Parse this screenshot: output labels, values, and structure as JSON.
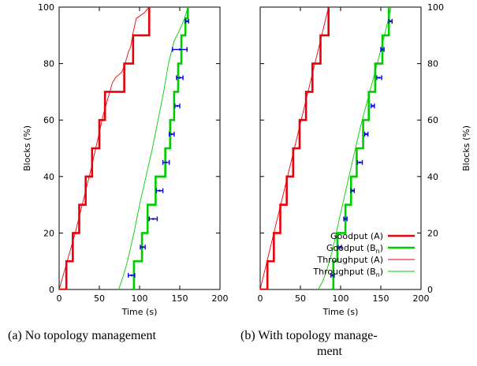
{
  "captions": {
    "a": "(a) No topology management",
    "b_line1": "(b)  With  topology  manage-",
    "b_line2": "ment"
  },
  "chart_data": [
    {
      "type": "line",
      "title": "",
      "xlabel": "Time (s)",
      "ylabel": "Blocks (%)",
      "xlim": [
        0,
        200
      ],
      "ylim": [
        0,
        100
      ],
      "xticks": [
        "0",
        "50",
        "100",
        "150",
        "200"
      ],
      "yticks": [
        "0",
        "20",
        "40",
        "60",
        "80",
        "100"
      ],
      "ylabel_side": "left",
      "legend": "none",
      "series": [
        {
          "name": "Goodput (A)",
          "style": "step",
          "color": "#e8000b",
          "points": [
            [
              0,
              0
            ],
            [
              9,
              0
            ],
            [
              9,
              10
            ],
            [
              17,
              10
            ],
            [
              17,
              20
            ],
            [
              25,
              20
            ],
            [
              25,
              30
            ],
            [
              33,
              30
            ],
            [
              33,
              40
            ],
            [
              41,
              40
            ],
            [
              41,
              50
            ],
            [
              50,
              50
            ],
            [
              50,
              60
            ],
            [
              57,
              60
            ],
            [
              57,
              70
            ],
            [
              81,
              70
            ],
            [
              81,
              80
            ],
            [
              92,
              80
            ],
            [
              92,
              90
            ],
            [
              112,
              90
            ],
            [
              112,
              100
            ]
          ]
        },
        {
          "name": "Throughput (A)",
          "style": "line",
          "color": "#e8000b",
          "points": [
            [
              0,
              0
            ],
            [
              20,
              20
            ],
            [
              40,
              43
            ],
            [
              55,
              62
            ],
            [
              66,
              73
            ],
            [
              70,
              75
            ],
            [
              74,
              76
            ],
            [
              78,
              77
            ],
            [
              82,
              80
            ],
            [
              86,
              84
            ],
            [
              89,
              86
            ],
            [
              92,
              91
            ],
            [
              96,
              96
            ],
            [
              106,
              98
            ],
            [
              112,
              100
            ]
          ]
        },
        {
          "name": "Goodput (B_n)",
          "style": "step",
          "color": "#00cc00",
          "points": [
            [
              90,
              0
            ],
            [
              93,
              0
            ],
            [
              93,
              10
            ],
            [
              103,
              10
            ],
            [
              103,
              20
            ],
            [
              110,
              20
            ],
            [
              110,
              30
            ],
            [
              120,
              30
            ],
            [
              120,
              40
            ],
            [
              132,
              40
            ],
            [
              132,
              50
            ],
            [
              138,
              50
            ],
            [
              138,
              60
            ],
            [
              143,
              60
            ],
            [
              143,
              70
            ],
            [
              148,
              70
            ],
            [
              148,
              80
            ],
            [
              152,
              80
            ],
            [
              152,
              90
            ],
            [
              157,
              90
            ],
            [
              157,
              96
            ],
            [
              160,
              96
            ],
            [
              160,
              100
            ]
          ]
        },
        {
          "name": "Throughput (B_n)",
          "style": "line",
          "color": "#00cc00",
          "points": [
            [
              74,
              0
            ],
            [
              80,
              5
            ],
            [
              85,
              10
            ],
            [
              93,
              20
            ],
            [
              100,
              30
            ],
            [
              108,
              40
            ],
            [
              116,
              50
            ],
            [
              123,
              60
            ],
            [
              130,
              70
            ],
            [
              136,
              80
            ],
            [
              143,
              88
            ],
            [
              150,
              92
            ],
            [
              156,
              96
            ],
            [
              160,
              100
            ]
          ]
        }
      ],
      "errorbars": {
        "color": "#0000e0",
        "points": [
          {
            "y": 5,
            "x": 90,
            "xmin": 86,
            "xmax": 94
          },
          {
            "y": 15,
            "x": 104,
            "xmin": 101,
            "xmax": 107
          },
          {
            "y": 25,
            "x": 117,
            "xmin": 112,
            "xmax": 122
          },
          {
            "y": 35,
            "x": 125,
            "xmin": 121,
            "xmax": 129
          },
          {
            "y": 45,
            "x": 133,
            "xmin": 129,
            "xmax": 137
          },
          {
            "y": 55,
            "x": 140,
            "xmin": 137,
            "xmax": 143
          },
          {
            "y": 65,
            "x": 147,
            "xmin": 144,
            "xmax": 150
          },
          {
            "y": 75,
            "x": 150,
            "xmin": 146,
            "xmax": 154
          },
          {
            "y": 85,
            "x": 150,
            "xmin": 141,
            "xmax": 159
          },
          {
            "y": 95,
            "x": 159,
            "xmin": 157,
            "xmax": 161
          }
        ]
      }
    },
    {
      "type": "line",
      "title": "",
      "xlabel": "Time (s)",
      "ylabel": "Blocks (%)",
      "xlim": [
        0,
        200
      ],
      "ylim": [
        0,
        100
      ],
      "xticks": [
        "0",
        "50",
        "100",
        "150",
        "200"
      ],
      "yticks": [
        "0",
        "20",
        "40",
        "60",
        "80",
        "100"
      ],
      "ylabel_side": "right",
      "legend": "bottom-right",
      "series": [
        {
          "name": "Goodput (A)",
          "legend_label": "Goodput (A)",
          "style": "step",
          "color": "#e8000b",
          "points": [
            [
              0,
              0
            ],
            [
              9,
              0
            ],
            [
              9,
              10
            ],
            [
              17,
              10
            ],
            [
              17,
              20
            ],
            [
              25,
              20
            ],
            [
              25,
              30
            ],
            [
              33,
              30
            ],
            [
              33,
              40
            ],
            [
              41,
              40
            ],
            [
              41,
              50
            ],
            [
              49,
              50
            ],
            [
              49,
              60
            ],
            [
              57,
              60
            ],
            [
              57,
              70
            ],
            [
              65,
              70
            ],
            [
              65,
              80
            ],
            [
              75,
              80
            ],
            [
              75,
              90
            ],
            [
              85,
              90
            ],
            [
              85,
              100
            ]
          ]
        },
        {
          "name": "Goodput (B_n)",
          "legend_label": "Goodput (B",
          "legend_sub": "n",
          "legend_tail": ")",
          "style": "step",
          "color": "#00cc00",
          "points": [
            [
              88,
              0
            ],
            [
              91,
              0
            ],
            [
              91,
              10
            ],
            [
              96,
              10
            ],
            [
              96,
              20
            ],
            [
              106,
              20
            ],
            [
              106,
              30
            ],
            [
              113,
              30
            ],
            [
              113,
              40
            ],
            [
              120,
              40
            ],
            [
              120,
              50
            ],
            [
              128,
              50
            ],
            [
              128,
              60
            ],
            [
              135,
              60
            ],
            [
              135,
              70
            ],
            [
              143,
              70
            ],
            [
              143,
              80
            ],
            [
              152,
              80
            ],
            [
              152,
              90
            ],
            [
              160,
              90
            ],
            [
              160,
              100
            ]
          ]
        },
        {
          "name": "Throughput (A)",
          "legend_label": "Throughput (A)",
          "style": "line",
          "color": "#e8000b",
          "points": [
            [
              0,
              0
            ],
            [
              85,
              100
            ]
          ]
        },
        {
          "name": "Throughput (B_n)",
          "legend_label": "Throughput (B",
          "legend_sub": "n",
          "legend_tail": ")",
          "style": "line",
          "color": "#00cc00",
          "points": [
            [
              72,
              0
            ],
            [
              78,
              3
            ],
            [
              84,
              8
            ],
            [
              90,
              14
            ],
            [
              100,
              27
            ],
            [
              112,
              42
            ],
            [
              125,
              58
            ],
            [
              140,
              74
            ],
            [
              152,
              87
            ],
            [
              163,
              100
            ]
          ]
        }
      ],
      "errorbars": {
        "color": "#0000e0",
        "points": [
          {
            "y": 5,
            "x": 90,
            "xmin": 88,
            "xmax": 92
          },
          {
            "y": 15,
            "x": 99,
            "xmin": 97,
            "xmax": 101
          },
          {
            "y": 25,
            "x": 106,
            "xmin": 104,
            "xmax": 108
          },
          {
            "y": 35,
            "x": 115,
            "xmin": 113,
            "xmax": 117
          },
          {
            "y": 45,
            "x": 124,
            "xmin": 121,
            "xmax": 127
          },
          {
            "y": 55,
            "x": 132,
            "xmin": 130,
            "xmax": 134
          },
          {
            "y": 65,
            "x": 140,
            "xmin": 138,
            "xmax": 142
          },
          {
            "y": 75,
            "x": 148,
            "xmin": 145,
            "xmax": 151
          },
          {
            "y": 85,
            "x": 152,
            "xmin": 150,
            "xmax": 154
          },
          {
            "y": 95,
            "x": 162,
            "xmin": 160,
            "xmax": 164
          }
        ]
      }
    }
  ]
}
